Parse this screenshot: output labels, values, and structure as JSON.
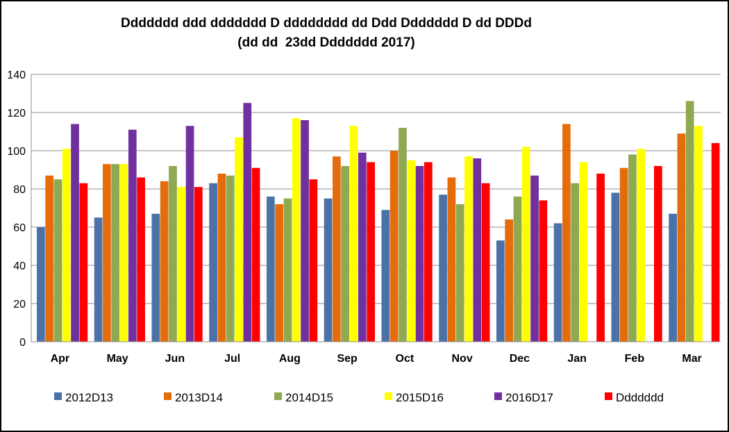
{
  "chart_data": {
    "type": "bar",
    "title_line1": "Ddddddd ddd ddddddd D dddddddd dd Ddd Ddddddd D dd DDDd",
    "title_line2": "(dd dd  23dd Ddddddd 2017)",
    "categories": [
      "Apr",
      "May",
      "Jun",
      "Jul",
      "Aug",
      "Sep",
      "Oct",
      "Nov",
      "Dec",
      "Jan",
      "Feb",
      "Mar"
    ],
    "ylim": [
      0,
      140
    ],
    "yticks": [
      0,
      20,
      40,
      60,
      80,
      100,
      120,
      140
    ],
    "grid": true,
    "legend_position": "bottom",
    "series": [
      {
        "name": "2012D13",
        "color": "#4a72a8",
        "values": [
          60,
          65,
          67,
          83,
          76,
          75,
          69,
          77,
          53,
          62,
          78,
          67
        ]
      },
      {
        "name": "2013D14",
        "color": "#e46c0a",
        "values": [
          87,
          93,
          84,
          88,
          72,
          97,
          100,
          86,
          64,
          114,
          91,
          109
        ]
      },
      {
        "name": "2014D15",
        "color": "#8fa953",
        "values": [
          85,
          93,
          92,
          87,
          75,
          92,
          112,
          72,
          76,
          83,
          98,
          126
        ]
      },
      {
        "name": "2015D16",
        "color": "#ffff00",
        "values": [
          101,
          93,
          81,
          107,
          117,
          113,
          95,
          97,
          102,
          94,
          101,
          113
        ]
      },
      {
        "name": "2016D17",
        "color": "#7030a0",
        "values": [
          114,
          111,
          113,
          125,
          116,
          99,
          92,
          96,
          87,
          null,
          null,
          null
        ]
      },
      {
        "name": "Ddddddd",
        "color": "#ff0000",
        "values": [
          83,
          86,
          81,
          91,
          85,
          94,
          94,
          83,
          74,
          88,
          92,
          104
        ]
      }
    ]
  }
}
